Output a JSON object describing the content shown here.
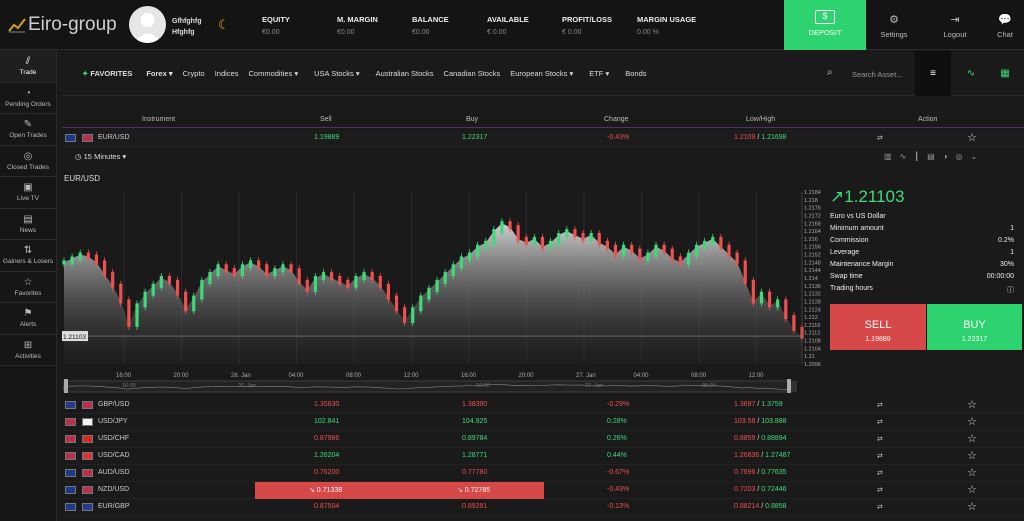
{
  "brand": {
    "logo": "Eiro-group"
  },
  "user": {
    "first": "Gfhfghfg",
    "last": "Hfghfg"
  },
  "stats": [
    {
      "label": "EQUITY",
      "value": "€0.00"
    },
    {
      "label": "M. MARGIN",
      "value": "€0.00"
    },
    {
      "label": "BALANCE",
      "value": "€0.00"
    },
    {
      "label": "AVAILABLE",
      "value": "€ 0.00"
    },
    {
      "label": "PROFIT/LOSS",
      "value": "€ 0.00"
    },
    {
      "label": "MARGIN USAGE",
      "value": "0.00 %"
    }
  ],
  "top_buttons": {
    "deposit": "DEPOSIT",
    "settings": "Settings",
    "logout": "Logout",
    "chat": "Chat"
  },
  "sidebar": [
    {
      "label": "Trade",
      "icon": "chart-line-icon"
    },
    {
      "label": "Pending Orders",
      "icon": "clock-icon"
    },
    {
      "label": "Open Trades",
      "icon": "edit-icon"
    },
    {
      "label": "Closed Trades",
      "icon": "check-icon"
    },
    {
      "label": "Live TV",
      "icon": "tv-icon"
    },
    {
      "label": "News",
      "icon": "news-icon"
    },
    {
      "label": "Gainers & Losers",
      "icon": "arrows-icon"
    },
    {
      "label": "Favorites",
      "icon": "star-icon"
    },
    {
      "label": "Alerts",
      "icon": "bell-icon"
    },
    {
      "label": "Activities",
      "icon": "activity-icon"
    }
  ],
  "categories": [
    "Forex",
    "Crypto",
    "Indices",
    "Commodities",
    "USA Stocks",
    "Australian Stocks",
    "Canadian Stocks",
    "European Stocks",
    "ETF",
    "Bonds"
  ],
  "favorites_label": "FAVORITES",
  "search": {
    "placeholder": "Search Asset..."
  },
  "table_headers": [
    "Instrument",
    "Sell",
    "Buy",
    "Change",
    "Low/High",
    "Action"
  ],
  "selected": {
    "symbol": "EUR/USD",
    "sell": "1.19889",
    "buy": "1.22317",
    "change": "-0.43%",
    "low": "1.2109",
    "high": "1.21698"
  },
  "timeframe": "15 Minutes",
  "chart_data": {
    "type": "candlestick",
    "title": "EUR/USD",
    "current": "1.21103",
    "x_ticks": [
      "16:00",
      "20:00",
      "26. Jan",
      "04:00",
      "08:00",
      "12:00",
      "16:00",
      "20:00",
      "27. Jan",
      "04:00",
      "08:00",
      "12:00"
    ],
    "y_ticks": [
      "1.2184",
      "1.218",
      "1.2176",
      "1.2172",
      "1.2168",
      "1.2164",
      "1.216",
      "1.2156",
      "1.2152",
      "1.2148",
      "1.2144",
      "1.214",
      "1.2136",
      "1.2132",
      "1.2128",
      "1.2124",
      "1.212",
      "1.2116",
      "1.2112",
      "1.2108",
      "1.2104",
      "1.21",
      "1.2096"
    ],
    "navigator_ticks": [
      "16:00",
      "26. Jan",
      "16:00",
      "27. Jan",
      "08:00"
    ],
    "ylim": [
      1.2096,
      1.2184
    ],
    "closes": [
      1.2148,
      1.215,
      1.2152,
      1.2151,
      1.2148,
      1.2142,
      1.2136,
      1.2128,
      1.2116,
      1.2126,
      1.2132,
      1.2136,
      1.214,
      1.2138,
      1.2132,
      1.2124,
      1.213,
      1.2138,
      1.2142,
      1.2146,
      1.2144,
      1.2142,
      1.2146,
      1.2148,
      1.2146,
      1.2142,
      1.2144,
      1.2146,
      1.2144,
      1.2138,
      1.2134,
      1.214,
      1.2142,
      1.214,
      1.2138,
      1.2136,
      1.214,
      1.2142,
      1.214,
      1.2136,
      1.213,
      1.2124,
      1.2118,
      1.2124,
      1.213,
      1.2134,
      1.2138,
      1.2142,
      1.2146,
      1.215,
      1.2152,
      1.2156,
      1.2158,
      1.2164,
      1.2168,
      1.2166,
      1.216,
      1.2158,
      1.216,
      1.2156,
      1.2158,
      1.2162,
      1.2164,
      1.2162,
      1.216,
      1.2162,
      1.2158,
      1.2156,
      1.2152,
      1.2156,
      1.2154,
      1.215,
      1.2152,
      1.2156,
      1.2154,
      1.215,
      1.2148,
      1.2152,
      1.2156,
      1.2158,
      1.216,
      1.2156,
      1.2152,
      1.2148,
      1.2138,
      1.2128,
      1.2132,
      1.2126,
      1.2128,
      1.212,
      1.2114,
      1.211
    ],
    "current_price": 1.21103
  },
  "asset_info": {
    "price": "1.21103",
    "name": "Euro vs US Dollar",
    "rows": [
      {
        "k": "Minimum amount",
        "v": "1"
      },
      {
        "k": "Commission",
        "v": "0.2%"
      },
      {
        "k": "Leverage",
        "v": "1"
      },
      {
        "k": "Maintenance Margin",
        "v": "30%"
      },
      {
        "k": "Swap time",
        "v": "00:00:00"
      },
      {
        "k": "Trading hours",
        "v": ""
      }
    ],
    "sell_label": "SELL",
    "sell_price": "1.19889",
    "buy_label": "BUY",
    "buy_price": "1.22317"
  },
  "rows": [
    {
      "symbol": "GBP/USD",
      "sell": "1.35630",
      "buy": "1.38390",
      "change": "-0.29%",
      "low": "1.3697",
      "high": "1.3759",
      "dir": "down",
      "lowc": "red",
      "highc": "green"
    },
    {
      "symbol": "USD/JPY",
      "sell": "102.841",
      "buy": "104.925",
      "change": "0.28%",
      "low": "103.58",
      "high": "103.888",
      "dir": "up",
      "lowc": "red",
      "highc": "green"
    },
    {
      "symbol": "USD/CHF",
      "sell": "0.87986",
      "buy": "0.89784",
      "change": "0.26%",
      "low": "0.8859",
      "high": "0.88894",
      "dir": "mix",
      "lowc": "red",
      "highc": "green"
    },
    {
      "symbol": "USD/CAD",
      "sell": "1.26204",
      "buy": "1.28771",
      "change": "0.44%",
      "low": "1.26836",
      "high": "1.27487",
      "dir": "up",
      "lowc": "red",
      "highc": "green"
    },
    {
      "symbol": "AUD/USD",
      "sell": "0.76200",
      "buy": "0.77780",
      "change": "-0.67%",
      "low": "0.7696",
      "high": "0.77635",
      "dir": "down",
      "lowc": "red",
      "highc": "green"
    },
    {
      "symbol": "NZD/USD",
      "sell": "0.71338",
      "buy": "0.72785",
      "change": "-0.43%",
      "low": "0.7203",
      "high": "0.72446",
      "dir": "highlight",
      "lowc": "red",
      "highc": "green"
    },
    {
      "symbol": "EUR/GBP",
      "sell": "0.87504",
      "buy": "0.89281",
      "change": "-0.13%",
      "low": "0.88214",
      "high": "0.8858",
      "dir": "down",
      "lowc": "red",
      "highc": "green"
    }
  ]
}
